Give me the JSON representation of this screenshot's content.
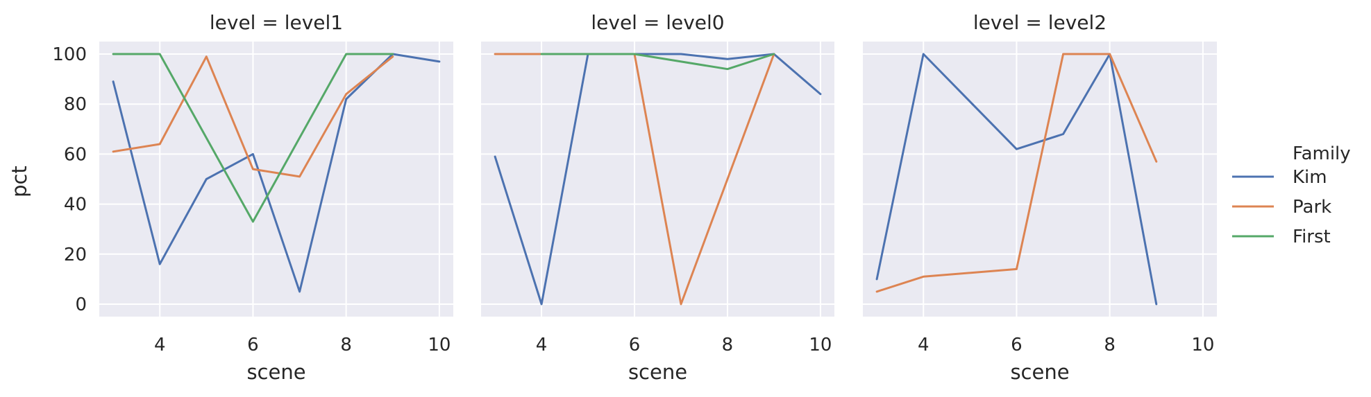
{
  "chart_data": {
    "type": "line",
    "ylabel": "pct",
    "xlabel": "scene",
    "xlim": [
      2.7,
      10.3
    ],
    "ylim": [
      -5,
      105
    ],
    "xticks": [
      4,
      6,
      8,
      10
    ],
    "yticks": [
      0,
      20,
      40,
      60,
      80,
      100
    ],
    "grid": true,
    "legend": {
      "title": "Family",
      "placement": "right",
      "entries": [
        "Kim",
        "Park",
        "First"
      ]
    },
    "colors": {
      "Kim": "#4c72b0",
      "Park": "#dd8452",
      "First": "#55a868"
    },
    "panels": [
      {
        "title": "level = level1",
        "series": [
          {
            "name": "Kim",
            "x": [
              3,
              4,
              5,
              6,
              7,
              8,
              9,
              10
            ],
            "y": [
              89,
              16,
              50,
              60,
              5,
              82,
              100,
              97
            ]
          },
          {
            "name": "Park",
            "x": [
              3,
              4,
              5,
              6,
              7,
              8,
              9
            ],
            "y": [
              61,
              64,
              99,
              54,
              51,
              84,
              99
            ]
          },
          {
            "name": "First",
            "x": [
              3,
              4,
              6,
              8,
              9
            ],
            "y": [
              100,
              100,
              33,
              100,
              100
            ]
          }
        ]
      },
      {
        "title": "level = level0",
        "series": [
          {
            "name": "Kim",
            "x": [
              3,
              4,
              5,
              6,
              7,
              8,
              9,
              10
            ],
            "y": [
              59,
              0,
              100,
              100,
              100,
              98,
              100,
              84
            ]
          },
          {
            "name": "Park",
            "x": [
              3,
              4,
              5,
              6,
              7,
              8,
              9
            ],
            "y": [
              100,
              100,
              100,
              100,
              0,
              50,
              100
            ]
          },
          {
            "name": "First",
            "x": [
              4,
              6,
              8,
              9
            ],
            "y": [
              100,
              100,
              94,
              100
            ]
          }
        ]
      },
      {
        "title": "level = level2",
        "series": [
          {
            "name": "Kim",
            "x": [
              3,
              4,
              6,
              7,
              8,
              9
            ],
            "y": [
              10,
              100,
              62,
              68,
              100,
              0
            ]
          },
          {
            "name": "Park",
            "x": [
              3,
              4,
              6,
              7,
              8,
              9
            ],
            "y": [
              5,
              11,
              14,
              100,
              100,
              57
            ]
          }
        ]
      }
    ]
  }
}
